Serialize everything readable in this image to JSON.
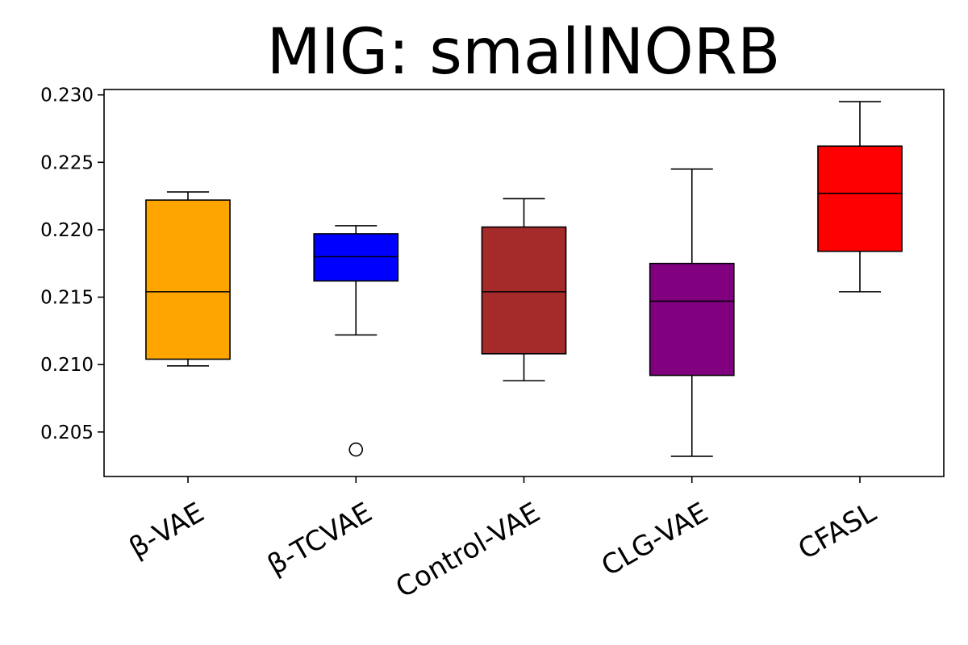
{
  "chart_data": {
    "type": "box",
    "title": "MIG: smallNORB",
    "xlabel": "",
    "ylabel": "",
    "ylim": [
      0.2017,
      0.2304
    ],
    "yticks": [
      {
        "value": 0.205,
        "label": "0.205"
      },
      {
        "value": 0.21,
        "label": "0.210"
      },
      {
        "value": 0.215,
        "label": "0.215"
      },
      {
        "value": 0.22,
        "label": "0.220"
      },
      {
        "value": 0.225,
        "label": "0.225"
      },
      {
        "value": 0.23,
        "label": "0.230"
      }
    ],
    "grid": false,
    "categories": [
      "β-VAE",
      "β-TCVAE",
      "Control-VAE",
      "CLG-VAE",
      "CFASL"
    ],
    "boxes": [
      {
        "name": "β-VAE",
        "whisker_low": 0.2099,
        "q1": 0.2104,
        "median": 0.2154,
        "q3": 0.2222,
        "whisker_high": 0.2228,
        "outliers": [],
        "color": "#FFA500"
      },
      {
        "name": "β-TCVAE",
        "whisker_low": 0.2122,
        "q1": 0.2162,
        "median": 0.218,
        "q3": 0.2197,
        "whisker_high": 0.2203,
        "outliers": [
          0.2037
        ],
        "color": "#0000FF"
      },
      {
        "name": "Control-VAE",
        "whisker_low": 0.2088,
        "q1": 0.2108,
        "median": 0.2154,
        "q3": 0.2202,
        "whisker_high": 0.2223,
        "outliers": [],
        "color": "#A52A2A"
      },
      {
        "name": "CLG-VAE",
        "whisker_low": 0.2032,
        "q1": 0.2092,
        "median": 0.2147,
        "q3": 0.2175,
        "whisker_high": 0.2245,
        "outliers": [],
        "color": "#800080"
      },
      {
        "name": "CFASL",
        "whisker_low": 0.2154,
        "q1": 0.2184,
        "median": 0.2227,
        "q3": 0.2262,
        "whisker_high": 0.2295,
        "outliers": [],
        "color": "#FF0000"
      }
    ]
  }
}
